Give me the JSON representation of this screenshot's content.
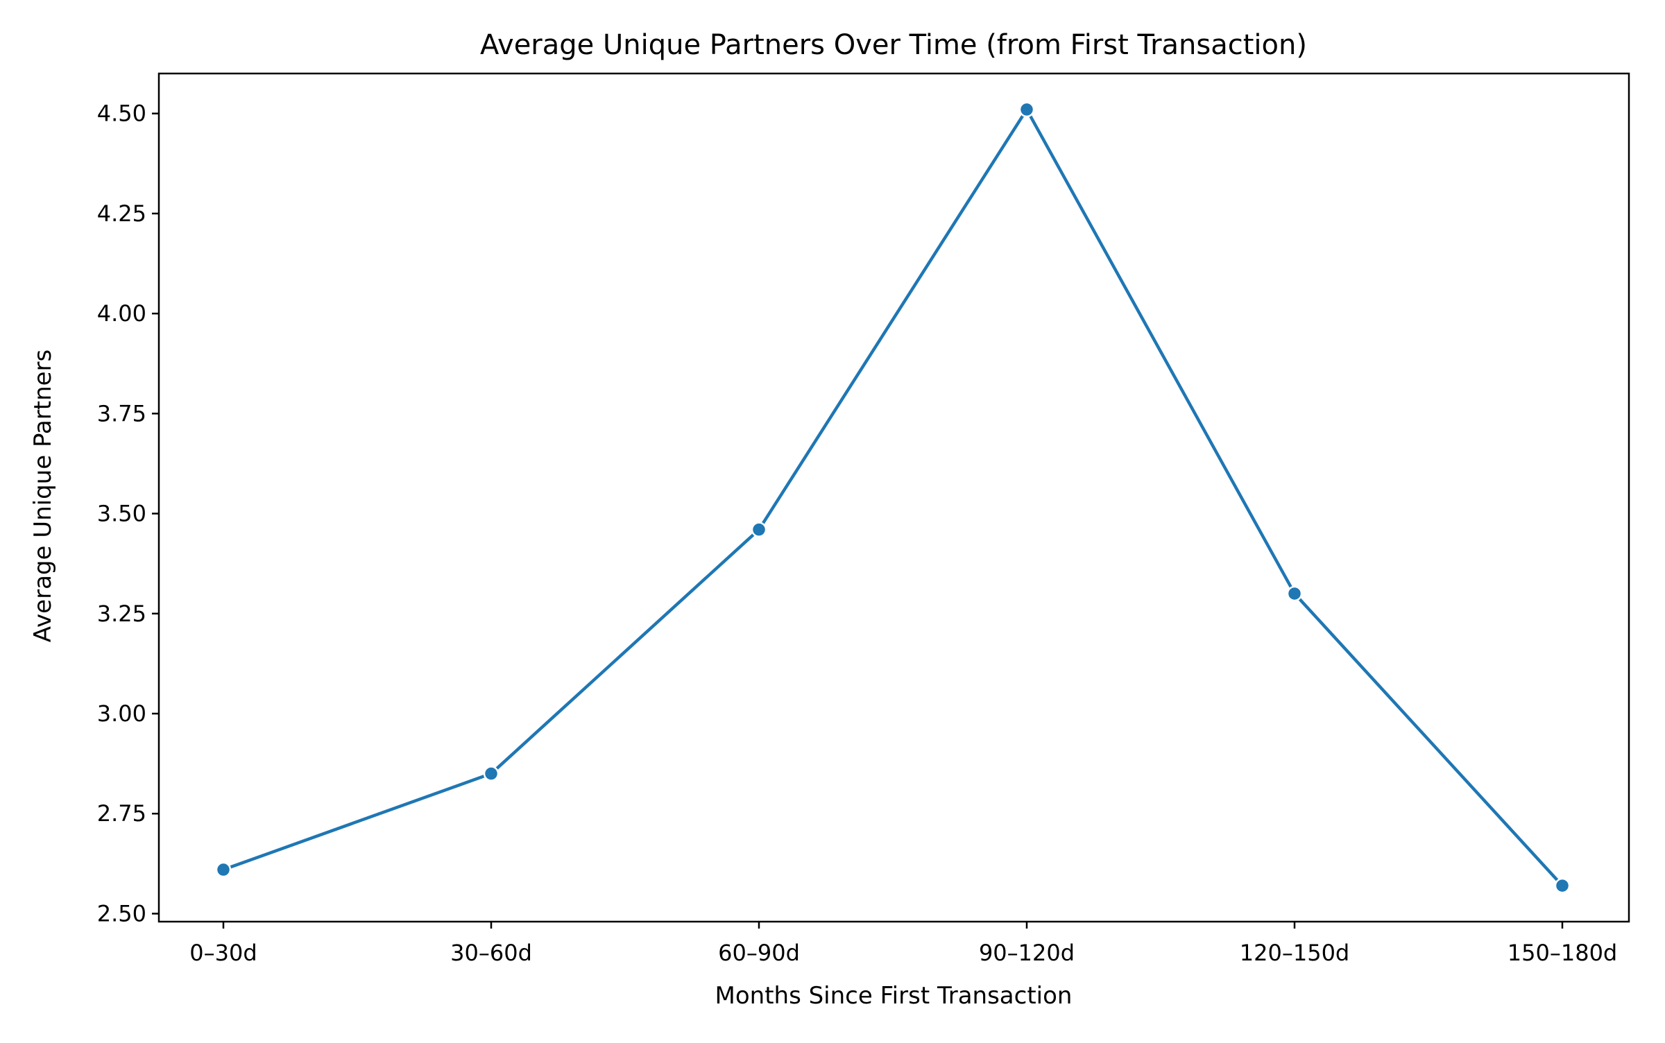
{
  "chart_data": {
    "type": "line",
    "title": "Average Unique Partners Over Time (from First Transaction)",
    "xlabel": "Months Since First Transaction",
    "ylabel": "Average Unique Partners",
    "categories": [
      "0–30d",
      "30–60d",
      "60–90d",
      "90–120d",
      "120–150d",
      "150–180d"
    ],
    "series": [
      {
        "values": [
          2.61,
          2.85,
          3.46,
          4.51,
          3.3,
          2.57
        ]
      }
    ],
    "ylim": [
      2.48,
      4.6
    ],
    "yticks": [
      "2.50",
      "2.75",
      "3.00",
      "3.25",
      "3.50",
      "3.75",
      "4.00",
      "4.25",
      "4.50"
    ],
    "grid": false,
    "legend": "none",
    "colors": {
      "line": "#1f77b4",
      "marker_edge": "#ffffff",
      "axes": "#000000"
    }
  }
}
